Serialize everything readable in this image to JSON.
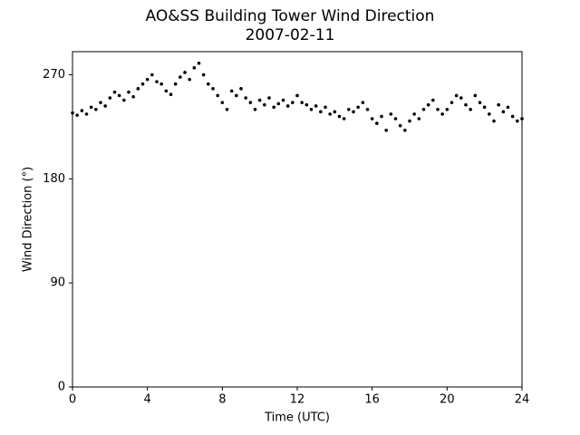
{
  "chart_data": {
    "type": "scatter",
    "title": "AO&SS Building Tower Wind Direction",
    "subtitle": "2007-02-11",
    "x_label": "Time (UTC)",
    "y_label": "Wind Direction (°)",
    "color": "#000000",
    "xlim": [
      0,
      24
    ],
    "xticks": [
      0,
      4,
      8,
      12,
      16,
      20,
      24
    ],
    "ylim": [
      0,
      290
    ],
    "yticks": [
      0,
      90,
      180,
      270
    ],
    "x": [
      0,
      0.25,
      0.5,
      0.75,
      1,
      1.25,
      1.5,
      1.75,
      2,
      2.25,
      2.5,
      2.75,
      3,
      3.25,
      3.5,
      3.75,
      4,
      4.25,
      4.5,
      4.75,
      5,
      5.25,
      5.5,
      5.75,
      6,
      6.25,
      6.5,
      6.75,
      7,
      7.25,
      7.5,
      7.75,
      8,
      8.25,
      8.5,
      8.75,
      9,
      9.25,
      9.5,
      9.75,
      10,
      10.25,
      10.5,
      10.75,
      11,
      11.25,
      11.5,
      11.75,
      12,
      12.25,
      12.5,
      12.75,
      13,
      13.25,
      13.5,
      13.75,
      14,
      14.25,
      14.5,
      14.75,
      15,
      15.25,
      15.5,
      15.75,
      16,
      16.25,
      16.5,
      16.75,
      17,
      17.25,
      17.5,
      17.75,
      18,
      18.25,
      18.5,
      18.75,
      19,
      19.25,
      19.5,
      19.75,
      20,
      20.25,
      20.5,
      20.75,
      21,
      21.25,
      21.5,
      21.75,
      22,
      22.25,
      22.5,
      22.75,
      23,
      23.25,
      23.5,
      23.75,
      24
    ],
    "values": [
      237,
      235,
      239,
      236,
      242,
      240,
      246,
      243,
      250,
      255,
      252,
      248,
      255,
      251,
      258,
      262,
      266,
      270,
      264,
      262,
      256,
      253,
      262,
      268,
      272,
      266,
      276,
      280,
      270,
      262,
      258,
      252,
      246,
      240,
      256,
      252,
      258,
      250,
      246,
      240,
      248,
      244,
      250,
      242,
      245,
      248,
      243,
      246,
      252,
      246,
      244,
      240,
      243,
      238,
      242,
      236,
      238,
      234,
      232,
      240,
      238,
      242,
      246,
      240,
      232,
      228,
      234,
      222,
      236,
      232,
      226,
      222,
      230,
      236,
      232,
      240,
      244,
      248,
      240,
      236,
      240,
      246,
      252,
      250,
      244,
      240,
      252,
      246,
      242,
      236,
      230,
      244,
      238,
      242,
      234,
      230,
      232
    ]
  }
}
